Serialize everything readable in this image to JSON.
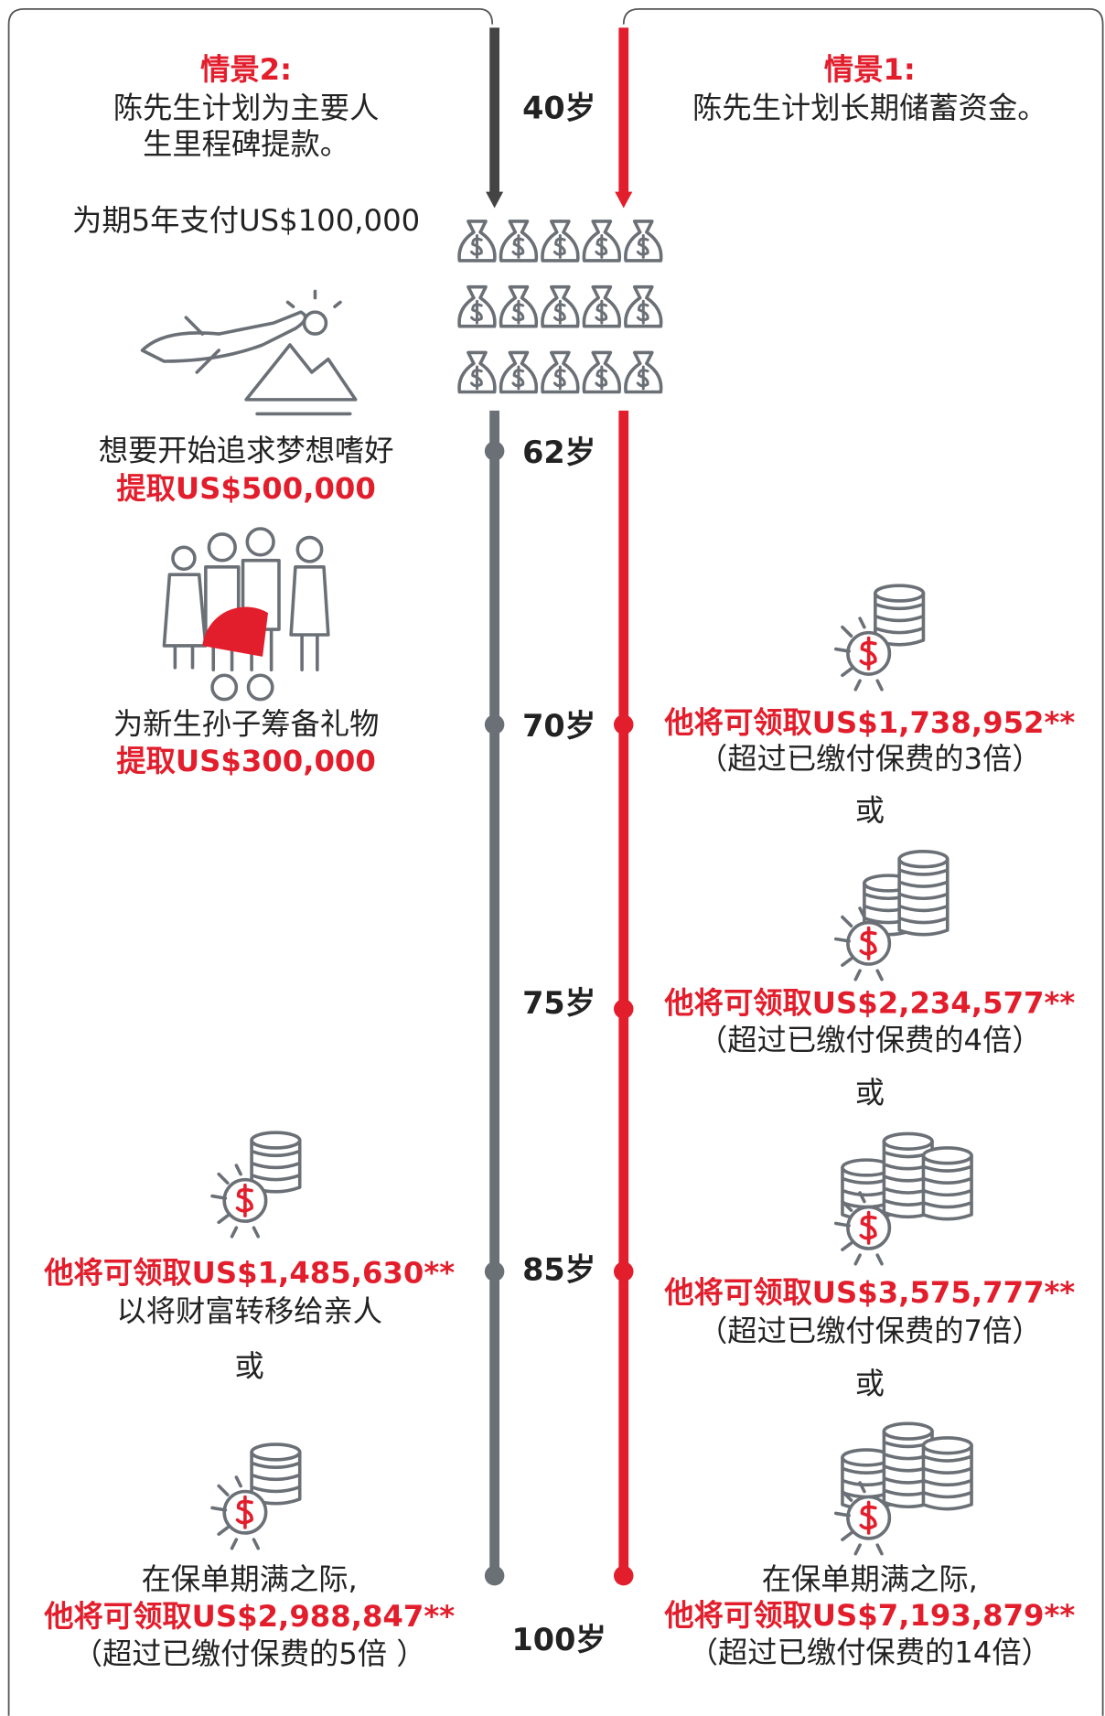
{
  "left": {
    "heading": "情景2:",
    "intro": [
      "陈先生计划为主要人",
      "生里程碑提款。"
    ],
    "payment": "为期5年支付US$100,000",
    "hobby": [
      "想要开始追求梦想嗜好",
      "提取US$500,000"
    ],
    "gift": [
      "为新生孙子筹备礼物",
      "提取US$300,000"
    ],
    "legacy": [
      "他将可领取US$1,485,630**",
      "以将财富转移给亲人",
      "或"
    ],
    "maturity": [
      "在保单期满之际,",
      "他将可领取US$2,988,847**",
      "（超过已缴付保费的5倍 ）"
    ]
  },
  "ages": [
    "40岁",
    "62岁",
    "70岁",
    "75岁",
    "85岁",
    "100岁"
  ],
  "right": {
    "heading": "情景1:",
    "intro": "陈先生计划长期储蓄资金。",
    "options": [
      {
        "amount": "他将可领取US$1,738,952**",
        "note": "（超过已缴付保费的3倍）",
        "or": "或"
      },
      {
        "amount": "他将可领取US$2,234,577**",
        "note": "（超过已缴付保费的4倍）",
        "or": "或"
      },
      {
        "amount": "他将可领取US$3,575,777**",
        "note": "（超过已缴付保费的7倍）",
        "or": "或"
      }
    ],
    "maturity": [
      "在保单期满之际,",
      "他将可领取US$7,193,879**",
      "（超过已缴付保费的14倍）"
    ]
  }
}
